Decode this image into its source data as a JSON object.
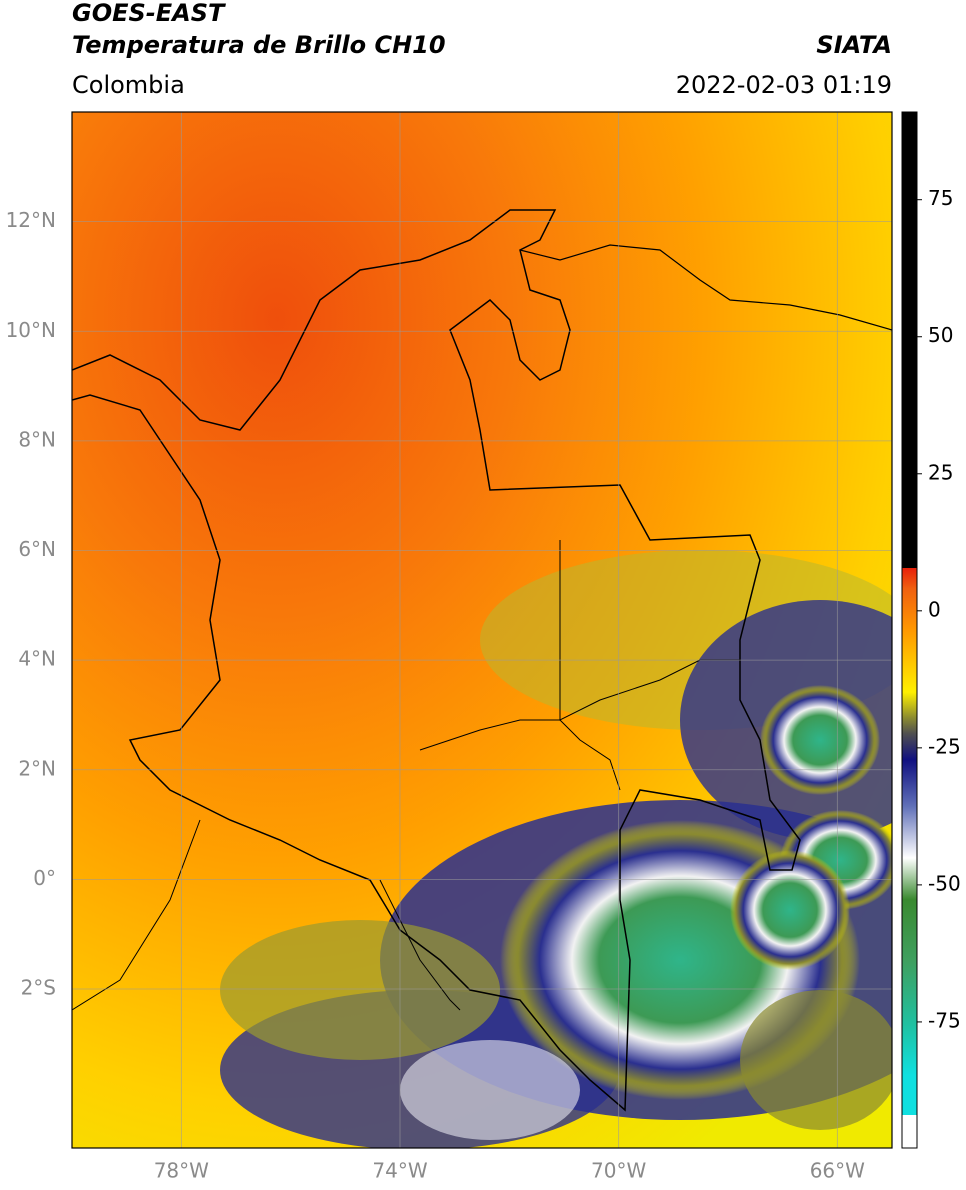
{
  "header": {
    "title": "GOES-EAST",
    "subtitle": "Temperatura de Brillo CH10",
    "region": "Colombia",
    "source": "SIATA",
    "timestamp": "2022-02-03 01:19"
  },
  "map": {
    "xlim": [
      -80,
      -65
    ],
    "ylim": [
      -4.9,
      14
    ],
    "xticks": [
      {
        "value": -78,
        "label": "78°W"
      },
      {
        "value": -74,
        "label": "74°W"
      },
      {
        "value": -70,
        "label": "70°W"
      },
      {
        "value": -66,
        "label": "66°W"
      }
    ],
    "yticks": [
      {
        "value": 12,
        "label": "12°N"
      },
      {
        "value": 10,
        "label": "10°N"
      },
      {
        "value": 8,
        "label": "8°N"
      },
      {
        "value": 6,
        "label": "6°N"
      },
      {
        "value": 4,
        "label": "4°N"
      },
      {
        "value": 2,
        "label": "2°N"
      },
      {
        "value": 0,
        "label": "0°"
      },
      {
        "value": -2,
        "label": "2°S"
      }
    ],
    "grid": true
  },
  "colorbar": {
    "lim": [
      -98,
      91
    ],
    "ticks": [
      75,
      50,
      25,
      0,
      -25,
      -50,
      -75
    ]
  }
}
